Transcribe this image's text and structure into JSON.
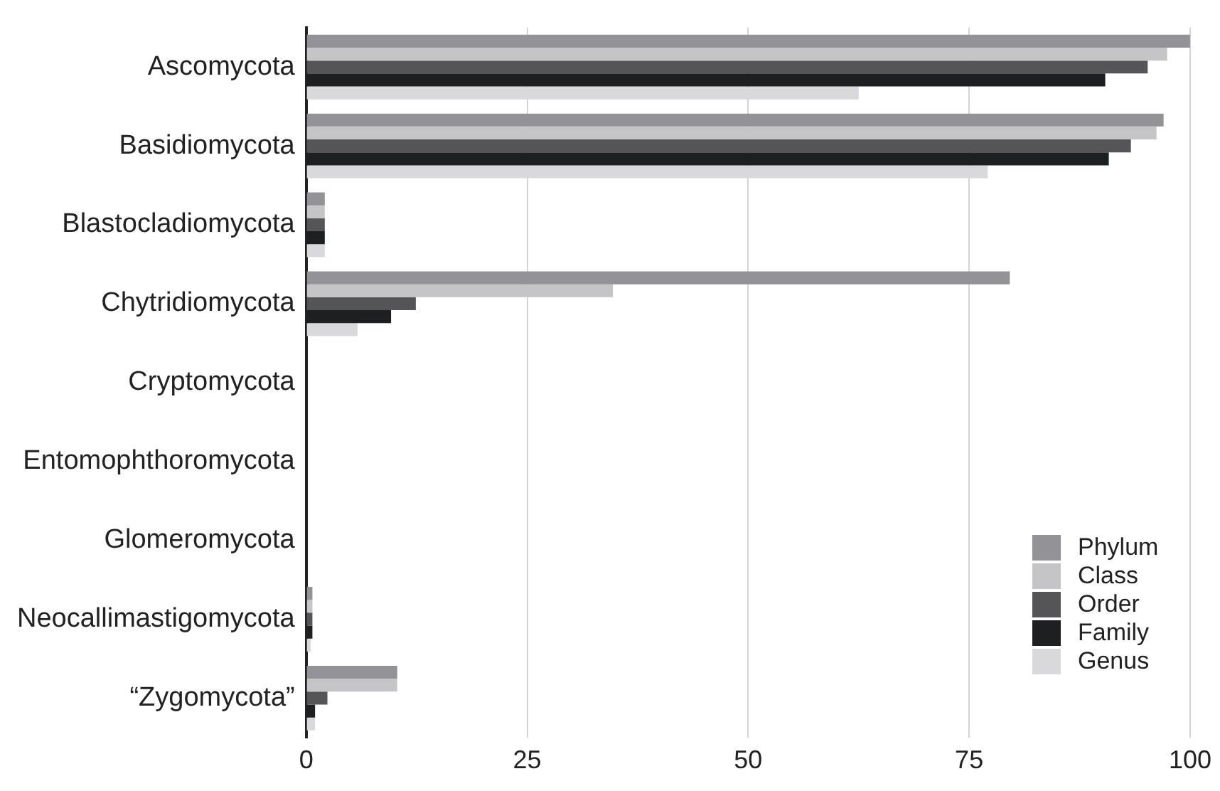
{
  "chart_data": {
    "type": "bar",
    "orientation": "horizontal",
    "categories": [
      "Ascomycota",
      "Basidiomycota",
      "Blastocladiomycota",
      "Chytridiomycota",
      "Cryptomycota",
      "Entomophthoromycota",
      "Glomeromycota",
      "Neocallimastigomycota",
      "“Zygomycota”"
    ],
    "series": [
      {
        "name": "Phylum",
        "color": "#939397",
        "values": [
          100,
          97.0,
          2.1,
          79.6,
          0,
          0,
          0,
          0.7,
          10.3
        ]
      },
      {
        "name": "Class",
        "color": "#c5c5c7",
        "values": [
          97.4,
          96.2,
          2.1,
          34.7,
          0,
          0,
          0,
          0.7,
          10.3
        ]
      },
      {
        "name": "Order",
        "color": "#555557",
        "values": [
          95.2,
          93.3,
          2.1,
          12.4,
          0,
          0,
          0,
          0.7,
          2.4
        ]
      },
      {
        "name": "Family",
        "color": "#1e1f21",
        "values": [
          90.4,
          90.8,
          2.1,
          9.6,
          0,
          0,
          0,
          0.7,
          1.0
        ]
      },
      {
        "name": "Genus",
        "color": "#d9d9db",
        "values": [
          62.5,
          77.1,
          2.1,
          5.8,
          0,
          0,
          0,
          0.5,
          1.0
        ]
      }
    ],
    "xlim": [
      0,
      100
    ],
    "xticks": [
      0,
      25,
      50,
      75,
      100
    ],
    "grid": "x",
    "legend": "bottom right"
  }
}
